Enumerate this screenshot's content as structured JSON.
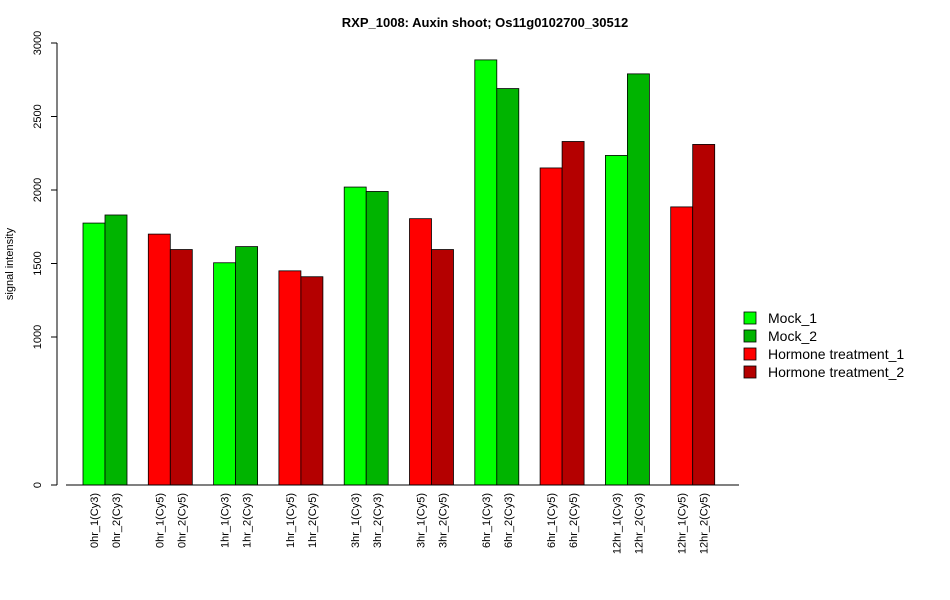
{
  "chart_data": {
    "type": "bar",
    "title": "RXP_1008: Auxin shoot; Os11g0102700_30512",
    "ylabel": "signal intensity",
    "xlabel": "",
    "ylim": [
      0,
      3000
    ],
    "y_scale": "compressed below 1000 (sqrt-like), linear above",
    "y_ticks": [
      0,
      1000,
      1500,
      2000,
      2500,
      3000
    ],
    "y_tick_labels": [
      "0",
      "1000",
      "1500",
      "2000",
      "2500",
      "3000"
    ],
    "grid": false,
    "legend_position": "right",
    "categories": [
      "0hr_1(Cy3)",
      "0hr_2(Cy3)",
      "0hr_1(Cy5)",
      "0hr_2(Cy5)",
      "1hr_1(Cy3)",
      "1hr_2(Cy3)",
      "1hr_1(Cy5)",
      "1hr_2(Cy5)",
      "3hr_1(Cy3)",
      "3hr_2(Cy3)",
      "3hr_1(Cy5)",
      "3hr_2(Cy5)",
      "6hr_1(Cy3)",
      "6hr_2(Cy3)",
      "6hr_1(Cy5)",
      "6hr_2(Cy5)",
      "12hr_1(Cy3)",
      "12hr_2(Cy3)",
      "12hr_1(Cy5)",
      "12hr_2(Cy5)"
    ],
    "values": [
      1775,
      1830,
      1700,
      1595,
      1505,
      1615,
      1450,
      1410,
      2020,
      1990,
      1805,
      1595,
      2885,
      2690,
      2150,
      2330,
      2235,
      2790,
      1885,
      2310
    ],
    "series_index": [
      0,
      1,
      2,
      3,
      0,
      1,
      2,
      3,
      0,
      1,
      2,
      3,
      0,
      1,
      2,
      3,
      0,
      1,
      2,
      3
    ],
    "series": [
      {
        "name": "Mock_1",
        "color": "#00ff00"
      },
      {
        "name": "Mock_2",
        "color": "#00b400"
      },
      {
        "name": "Hormone treatment_1",
        "color": "#ff0000"
      },
      {
        "name": "Hormone treatment_2",
        "color": "#b40000"
      }
    ]
  }
}
